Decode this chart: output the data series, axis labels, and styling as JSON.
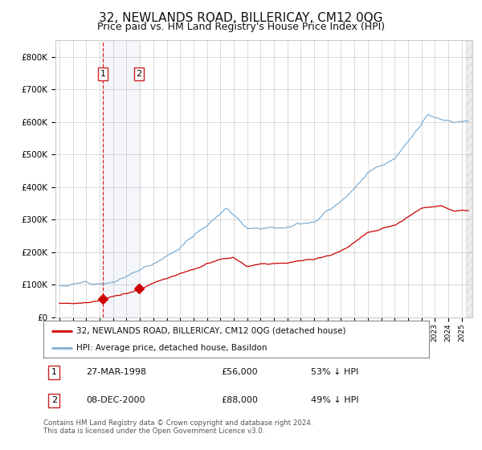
{
  "title": "32, NEWLANDS ROAD, BILLERICAY, CM12 0QG",
  "subtitle": "Price paid vs. HM Land Registry's House Price Index (HPI)",
  "title_fontsize": 11,
  "subtitle_fontsize": 9,
  "background_color": "#ffffff",
  "plot_bg_color": "#ffffff",
  "grid_color": "#cccccc",
  "hpi_color": "#7fafd4",
  "price_color": "#cc0000",
  "sale1_date_x": 1998.23,
  "sale1_price": 56000,
  "sale1_label": "1",
  "sale2_date_x": 2000.93,
  "sale2_price": 88000,
  "sale2_label": "2",
  "shade_start": 1998.23,
  "shade_end": 2000.93,
  "legend_entries": [
    "32, NEWLANDS ROAD, BILLERICAY, CM12 0QG (detached house)",
    "HPI: Average price, detached house, Basildon"
  ],
  "table_rows": [
    [
      "1",
      "27-MAR-1998",
      "£56,000",
      "53% ↓ HPI"
    ],
    [
      "2",
      "08-DEC-2000",
      "£88,000",
      "49% ↓ HPI"
    ]
  ],
  "footer": "Contains HM Land Registry data © Crown copyright and database right 2024.\nThis data is licensed under the Open Government Licence v3.0.",
  "ylim": [
    0,
    850000
  ],
  "xlim_start": 1994.7,
  "xlim_end": 2025.8,
  "yticks": [
    0,
    100000,
    200000,
    300000,
    400000,
    500000,
    600000,
    700000,
    800000
  ],
  "ytick_labels": [
    "£0",
    "£100K",
    "£200K",
    "£300K",
    "£400K",
    "£500K",
    "£600K",
    "£700K",
    "£800K"
  ],
  "hpi_key_years": [
    1995,
    1997,
    1999,
    2000,
    2002,
    2004,
    2007.5,
    2009,
    2010,
    2012,
    2014,
    2016,
    2018,
    2020,
    2021,
    2022.5,
    2023.5,
    2024.5,
    2025.5
  ],
  "hpi_key_vals": [
    97000,
    108000,
    120000,
    135000,
    175000,
    235000,
    355000,
    300000,
    305000,
    320000,
    340000,
    405000,
    500000,
    545000,
    590000,
    670000,
    650000,
    635000,
    640000
  ],
  "pp_key_years": [
    1995,
    1997,
    1998.23,
    2000.93,
    2002,
    2004,
    2007,
    2008,
    2009,
    2010,
    2012,
    2014,
    2016,
    2018,
    2020,
    2022,
    2023.5,
    2024.5,
    2025.5
  ],
  "pp_key_vals": [
    43000,
    50000,
    56000,
    88000,
    108000,
    140000,
    180000,
    185000,
    155000,
    162000,
    170000,
    180000,
    210000,
    265000,
    285000,
    335000,
    345000,
    325000,
    325000
  ]
}
